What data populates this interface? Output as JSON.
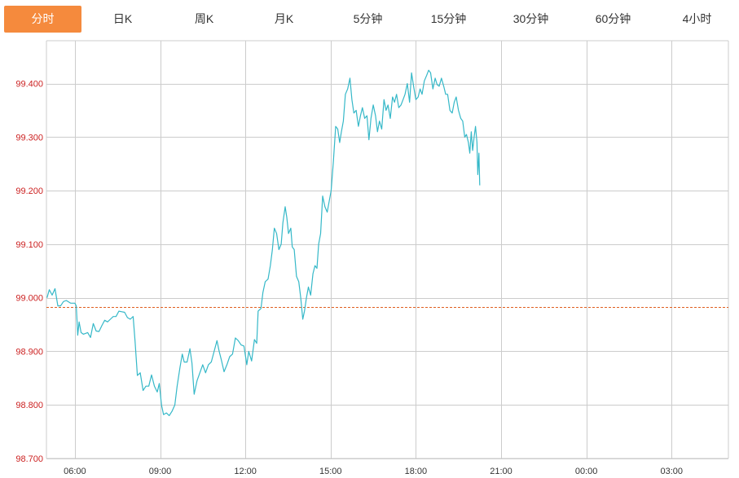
{
  "tabs": [
    "分时",
    "日K",
    "周K",
    "月K",
    "5分钟",
    "15分钟",
    "30分钟",
    "60分钟",
    "4小时"
  ],
  "active_tab": 0,
  "colors": {
    "accent": "#f58a3d",
    "line": "#35b8c8",
    "grid": "#cccccc",
    "ref_line": "#e06020",
    "y_labels": "#cc2222"
  },
  "chart_data": {
    "type": "line",
    "x_ticks": [
      "06:00",
      "09:00",
      "12:00",
      "15:00",
      "18:00",
      "21:00",
      "00:00",
      "03:00"
    ],
    "x_range_hours": [
      5.0,
      29.0
    ],
    "y_ticks": [
      "98.700",
      "98.800",
      "98.900",
      "99.000",
      "99.100",
      "99.200",
      "99.300",
      "99.400"
    ],
    "ylim": [
      98.7,
      99.48
    ],
    "reference_value": 98.982,
    "grid": true,
    "series": [
      {
        "points": [
          [
            5.02,
            99.0
          ],
          [
            5.1,
            99.015
          ],
          [
            5.2,
            99.005
          ],
          [
            5.3,
            99.017
          ],
          [
            5.4,
            98.985
          ],
          [
            5.5,
            98.985
          ],
          [
            5.6,
            98.993
          ],
          [
            5.7,
            98.995
          ],
          [
            5.85,
            98.99
          ],
          [
            6.0,
            98.99
          ],
          [
            6.05,
            98.985
          ],
          [
            6.1,
            98.93
          ],
          [
            6.15,
            98.955
          ],
          [
            6.22,
            98.935
          ],
          [
            6.3,
            98.932
          ],
          [
            6.45,
            98.935
          ],
          [
            6.55,
            98.926
          ],
          [
            6.65,
            98.952
          ],
          [
            6.75,
            98.938
          ],
          [
            6.85,
            98.937
          ],
          [
            6.95,
            98.948
          ],
          [
            7.05,
            98.958
          ],
          [
            7.15,
            98.955
          ],
          [
            7.25,
            98.96
          ],
          [
            7.35,
            98.965
          ],
          [
            7.45,
            98.965
          ],
          [
            7.55,
            98.975
          ],
          [
            7.65,
            98.974
          ],
          [
            7.75,
            98.973
          ],
          [
            7.85,
            98.963
          ],
          [
            7.95,
            98.96
          ],
          [
            8.05,
            98.965
          ],
          [
            8.12,
            98.918
          ],
          [
            8.2,
            98.855
          ],
          [
            8.3,
            98.86
          ],
          [
            8.4,
            98.827
          ],
          [
            8.5,
            98.835
          ],
          [
            8.6,
            98.835
          ],
          [
            8.7,
            98.856
          ],
          [
            8.8,
            98.835
          ],
          [
            8.9,
            98.824
          ],
          [
            8.97,
            98.84
          ],
          [
            9.05,
            98.8
          ],
          [
            9.12,
            98.782
          ],
          [
            9.22,
            98.785
          ],
          [
            9.32,
            98.78
          ],
          [
            9.42,
            98.788
          ],
          [
            9.52,
            98.8
          ],
          [
            9.6,
            98.835
          ],
          [
            9.7,
            98.87
          ],
          [
            9.78,
            98.895
          ],
          [
            9.85,
            98.88
          ],
          [
            9.95,
            98.88
          ],
          [
            10.05,
            98.905
          ],
          [
            10.12,
            98.878
          ],
          [
            10.2,
            98.82
          ],
          [
            10.3,
            98.845
          ],
          [
            10.4,
            98.86
          ],
          [
            10.5,
            98.875
          ],
          [
            10.6,
            98.86
          ],
          [
            10.7,
            98.875
          ],
          [
            10.8,
            98.88
          ],
          [
            10.9,
            98.9
          ],
          [
            11.0,
            98.92
          ],
          [
            11.08,
            98.9
          ],
          [
            11.15,
            98.885
          ],
          [
            11.25,
            98.862
          ],
          [
            11.35,
            98.875
          ],
          [
            11.45,
            98.89
          ],
          [
            11.55,
            98.895
          ],
          [
            11.65,
            98.925
          ],
          [
            11.75,
            98.92
          ],
          [
            11.85,
            98.912
          ],
          [
            11.95,
            98.91
          ],
          [
            12.05,
            98.875
          ],
          [
            12.12,
            98.9
          ],
          [
            12.22,
            98.882
          ],
          [
            12.32,
            98.922
          ],
          [
            12.4,
            98.915
          ],
          [
            12.45,
            98.975
          ],
          [
            12.55,
            98.98
          ],
          [
            12.62,
            99.01
          ],
          [
            12.7,
            99.03
          ],
          [
            12.8,
            99.035
          ],
          [
            12.88,
            99.06
          ],
          [
            12.95,
            99.09
          ],
          [
            13.02,
            99.13
          ],
          [
            13.1,
            99.12
          ],
          [
            13.18,
            99.09
          ],
          [
            13.26,
            99.1
          ],
          [
            13.32,
            99.14
          ],
          [
            13.4,
            99.17
          ],
          [
            13.46,
            99.15
          ],
          [
            13.52,
            99.12
          ],
          [
            13.6,
            99.13
          ],
          [
            13.65,
            99.095
          ],
          [
            13.72,
            99.09
          ],
          [
            13.8,
            99.04
          ],
          [
            13.88,
            99.03
          ],
          [
            13.95,
            99.0
          ],
          [
            14.02,
            98.96
          ],
          [
            14.08,
            98.975
          ],
          [
            14.15,
            99.0
          ],
          [
            14.22,
            99.02
          ],
          [
            14.3,
            99.005
          ],
          [
            14.38,
            99.045
          ],
          [
            14.45,
            99.06
          ],
          [
            14.52,
            99.055
          ],
          [
            14.58,
            99.1
          ],
          [
            14.65,
            99.12
          ],
          [
            14.72,
            99.19
          ],
          [
            14.8,
            99.17
          ],
          [
            14.88,
            99.16
          ],
          [
            14.95,
            99.18
          ],
          [
            15.02,
            99.2
          ],
          [
            15.1,
            99.255
          ],
          [
            15.18,
            99.32
          ],
          [
            15.25,
            99.315
          ],
          [
            15.32,
            99.29
          ],
          [
            15.38,
            99.31
          ],
          [
            15.45,
            99.33
          ],
          [
            15.52,
            99.38
          ],
          [
            15.6,
            99.39
          ],
          [
            15.68,
            99.41
          ],
          [
            15.75,
            99.37
          ],
          [
            15.82,
            99.345
          ],
          [
            15.9,
            99.35
          ],
          [
            15.98,
            99.32
          ],
          [
            16.05,
            99.34
          ],
          [
            16.12,
            99.355
          ],
          [
            16.2,
            99.335
          ],
          [
            16.28,
            99.34
          ],
          [
            16.35,
            99.295
          ],
          [
            16.42,
            99.335
          ],
          [
            16.5,
            99.36
          ],
          [
            16.58,
            99.34
          ],
          [
            16.65,
            99.31
          ],
          [
            16.72,
            99.33
          ],
          [
            16.8,
            99.315
          ],
          [
            16.88,
            99.37
          ],
          [
            16.95,
            99.35
          ],
          [
            17.02,
            99.36
          ],
          [
            17.1,
            99.335
          ],
          [
            17.18,
            99.375
          ],
          [
            17.25,
            99.365
          ],
          [
            17.32,
            99.38
          ],
          [
            17.4,
            99.355
          ],
          [
            17.48,
            99.36
          ],
          [
            17.55,
            99.37
          ],
          [
            17.62,
            99.38
          ],
          [
            17.7,
            99.4
          ],
          [
            17.78,
            99.365
          ],
          [
            17.85,
            99.42
          ],
          [
            17.92,
            99.395
          ],
          [
            18.0,
            99.37
          ],
          [
            18.08,
            99.375
          ],
          [
            18.15,
            99.39
          ],
          [
            18.22,
            99.38
          ],
          [
            18.3,
            99.405
          ],
          [
            18.38,
            99.415
          ],
          [
            18.45,
            99.425
          ],
          [
            18.52,
            99.42
          ],
          [
            18.6,
            99.39
          ],
          [
            18.68,
            99.41
          ],
          [
            18.75,
            99.398
          ],
          [
            18.82,
            99.395
          ],
          [
            18.9,
            99.41
          ],
          [
            18.98,
            99.395
          ],
          [
            19.05,
            99.38
          ],
          [
            19.12,
            99.38
          ],
          [
            19.2,
            99.35
          ],
          [
            19.28,
            99.345
          ],
          [
            19.35,
            99.365
          ],
          [
            19.42,
            99.375
          ],
          [
            19.5,
            99.35
          ],
          [
            19.58,
            99.335
          ],
          [
            19.65,
            99.33
          ],
          [
            19.72,
            99.3
          ],
          [
            19.78,
            99.305
          ],
          [
            19.85,
            99.29
          ],
          [
            19.9,
            99.27
          ],
          [
            19.95,
            99.31
          ],
          [
            20.0,
            99.275
          ],
          [
            20.05,
            99.3
          ],
          [
            20.1,
            99.32
          ],
          [
            20.15,
            99.29
          ],
          [
            20.18,
            99.23
          ],
          [
            20.22,
            99.27
          ],
          [
            20.25,
            99.21
          ]
        ]
      }
    ]
  }
}
